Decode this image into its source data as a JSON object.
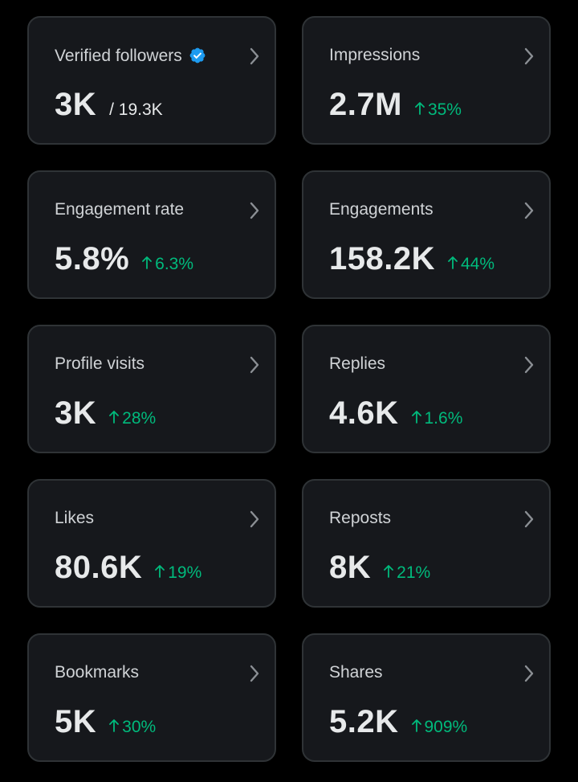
{
  "colors": {
    "background": "#000000",
    "card": "#16181c",
    "card_border": "#2f3336",
    "label": "#d0d3d6",
    "value": "#e7e9ea",
    "positive": "#00ba7c",
    "verified": "#1d9bf0"
  },
  "cards": [
    {
      "label": "Verified followers",
      "value": "3K",
      "total": "/ 19.3K",
      "change": "",
      "icon": "verified-badge-icon"
    },
    {
      "label": "Impressions",
      "value": "2.7M",
      "total": "",
      "change": "35%"
    },
    {
      "label": "Engagement rate",
      "value": "5.8%",
      "total": "",
      "change": "6.3%"
    },
    {
      "label": "Engagements",
      "value": "158.2K",
      "total": "",
      "change": "44%"
    },
    {
      "label": "Profile visits",
      "value": "3K",
      "total": "",
      "change": "28%"
    },
    {
      "label": "Replies",
      "value": "4.6K",
      "total": "",
      "change": "1.6%"
    },
    {
      "label": "Likes",
      "value": "80.6K",
      "total": "",
      "change": "19%"
    },
    {
      "label": "Reposts",
      "value": "8K",
      "total": "",
      "change": "21%"
    },
    {
      "label": "Bookmarks",
      "value": "5K",
      "total": "",
      "change": "30%"
    },
    {
      "label": "Shares",
      "value": "5.2K",
      "total": "",
      "change": "909%"
    }
  ]
}
